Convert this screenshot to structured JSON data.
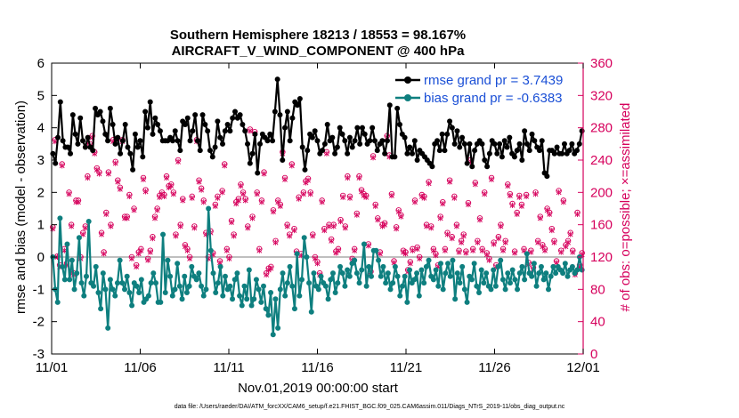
{
  "chart_data": {
    "type": "line",
    "title": "Southern Hemisphere 18213 / 18553 = 98.167%",
    "subtitle": "AIRCRAFT_V_WIND_COMPONENT @ 400 hPa",
    "xlabel": "Nov.01,2019 00:00:00 start",
    "ylabel": "rmse and bias (model - observation)",
    "ylabel_right": "# of obs: o=possible; ×=assimilated",
    "footer": "data file: /Users/raeder/DAI/ATM_forcXX/CAM6_setup/f.e21.FHIST_BGC.f09_025.CAM6assim.011/Diags_NTrS_2019-11/obs_diag_output.nc",
    "xlim": [
      0,
      30
    ],
    "ylim": [
      -3,
      6
    ],
    "ylim_right": [
      0,
      360
    ],
    "x_tick_labels": [
      "11/01",
      "11/06",
      "11/11",
      "11/16",
      "11/21",
      "11/26",
      "12/01"
    ],
    "x_tick_values": [
      0,
      5,
      10,
      15,
      20,
      25,
      30
    ],
    "y_tick_labels": [
      "-3",
      "-2",
      "-1",
      "0",
      "1",
      "2",
      "3",
      "4",
      "5",
      "6"
    ],
    "y_tick_values": [
      -3,
      -2,
      -1,
      0,
      1,
      2,
      3,
      4,
      5,
      6
    ],
    "y_right_tick_labels": [
      "0",
      "40",
      "80",
      "120",
      "160",
      "200",
      "240",
      "280",
      "320",
      "360"
    ],
    "y_right_tick_values": [
      0,
      40,
      80,
      120,
      160,
      200,
      240,
      280,
      320,
      360
    ],
    "zero_line": 0,
    "colors": {
      "rmse": "#000000",
      "bias": "#0e7f7f",
      "obs": "#d6005c",
      "legend_text": "#1a4fd6",
      "zero_line": "#bfbfbf"
    },
    "series": [
      {
        "name": "rmse grand pr = 3.7439",
        "axis": "left",
        "values": [
          3.2,
          2.9,
          3.7,
          4.8,
          3.6,
          3.4,
          3.4,
          3.2,
          4.4,
          3.8,
          3.5,
          4.3,
          3.6,
          3.4,
          3.7,
          3.4,
          3.3,
          4.6,
          4.4,
          4.5,
          4.2,
          3.8,
          3.6,
          4.6,
          4.1,
          3.5,
          3.7,
          3.2,
          3.6,
          4.1,
          3.4,
          3.2,
          2.7,
          3.8,
          3.4,
          3.6,
          3.1,
          4.5,
          4.0,
          4.8,
          3.8,
          4.3,
          4.1,
          3.9,
          3.6,
          3.6,
          3.6,
          3.7,
          3.6,
          3.9,
          3.6,
          3.3,
          4.2,
          4.1,
          4.3,
          3.6,
          3.9,
          4.4,
          3.6,
          3.3,
          4.4,
          4.1,
          3.9,
          3.3,
          3.1,
          3.4,
          4.2,
          3.7,
          3.5,
          3.9,
          4.1,
          3.9,
          4.3,
          4.5,
          4.3,
          4.4,
          4.1,
          3.9,
          3.5,
          2.9,
          3.2,
          3.8,
          2.6,
          3.5,
          3.8,
          3.7,
          3.6,
          3.8,
          3.6,
          4.5,
          5.5,
          4.4,
          3.0,
          4.0,
          4.5,
          3.6,
          4.3,
          4.8,
          4.7,
          4.9,
          3.4,
          2.7,
          3.3,
          3.8,
          3.7,
          3.9,
          3.6,
          3.2,
          3.3,
          3.5,
          4.1,
          3.6,
          3.7,
          3.2,
          3.4,
          4.0,
          3.8,
          3.6,
          3.2,
          3.7,
          3.4,
          3.6,
          4.0,
          3.5,
          4.0,
          3.8,
          3.5,
          3.6,
          4.0,
          3.6,
          3.3,
          3.5,
          3.6,
          3.2,
          3.6,
          4.7,
          3.1,
          3.1,
          4.6,
          4.1,
          3.8,
          3.7,
          3.2,
          3.4,
          3.2,
          3.6,
          3.0,
          3.3,
          3.2,
          3.1,
          3.0,
          2.9,
          2.8,
          3.5,
          3.6,
          3.3,
          3.8,
          3.3,
          3.8,
          4.2,
          4.0,
          3.5,
          3.9,
          3.4,
          3.7,
          3.5,
          2.9,
          3.5,
          2.8,
          3.3,
          3.5,
          3.6,
          3.5,
          3.0,
          2.8,
          3.2,
          3.6,
          3.5,
          3.2,
          3.5,
          3.1,
          3.6,
          3.4,
          3.7,
          3.2,
          3.1,
          3.3,
          3.5,
          3.0,
          3.9,
          3.5,
          3.3,
          3.8,
          3.6,
          3.4,
          3.3,
          3.6,
          2.6,
          2.5,
          3.3,
          3.3,
          3.2,
          3.4,
          3.2,
          3.2,
          3.5,
          3.2,
          3.3,
          3.5,
          3.2,
          3.3,
          3.5,
          3.9
        ],
        "values_note": "sampled 6-hourly, approximate"
      },
      {
        "name": "bias grand pr = -0.6383",
        "axis": "left",
        "values": [
          0.0,
          -1.0,
          -1.4,
          1.2,
          -0.3,
          -0.7,
          0.4,
          -0.7,
          -0.1,
          -1.0,
          -0.5,
          0.6,
          -0.8,
          -1.2,
          -0.6,
          1.1,
          -0.8,
          -0.9,
          -0.3,
          -1.1,
          -1.6,
          -0.5,
          -1.0,
          -2.2,
          -0.7,
          -1.0,
          -1.2,
          -0.8,
          -0.1,
          -0.8,
          -1.0,
          -0.6,
          -1.1,
          -1.5,
          -0.8,
          -0.9,
          -1.1,
          -0.7,
          -1.4,
          -1.3,
          -1.2,
          -0.8,
          -0.5,
          -0.8,
          -1.4,
          -1.4,
          0.7,
          -1.1,
          -0.1,
          -0.6,
          -1.2,
          -1.0,
          -0.2,
          -0.9,
          -1.3,
          -0.6,
          -1.1,
          -0.9,
          -0.3,
          -0.6,
          -0.7,
          -0.5,
          -0.9,
          -1.2,
          -1.0,
          1.5,
          0.2,
          -0.5,
          -1.1,
          -0.8,
          -0.3,
          -1.2,
          -0.6,
          -1.0,
          -0.9,
          -1.3,
          -0.7,
          -0.5,
          -1.2,
          -1.5,
          -0.9,
          -1.3,
          -0.4,
          -1.5,
          -1.3,
          -0.7,
          -1.0,
          -1.4,
          -0.9,
          -1.6,
          -1.8,
          -1.1,
          -2.4,
          -1.3,
          -2.2,
          -1.0,
          -0.5,
          -1.2,
          -0.8,
          -0.3,
          -0.9,
          -1.6,
          0.1,
          -1.2,
          -0.7,
          0.6,
          0.0,
          -0.8,
          -1.7,
          -0.5,
          -0.9,
          -1.0,
          -0.6,
          -0.8,
          -0.9,
          -1.3,
          -0.7,
          -0.5,
          -1.1,
          -0.8,
          -0.3,
          -0.5,
          -0.9,
          -0.4,
          -0.6,
          -0.2,
          -0.1,
          -0.5,
          -0.8,
          -0.4,
          0.4,
          -0.9,
          -0.3,
          -0.6,
          0.2,
          0.2,
          -0.1,
          -0.6,
          -0.3,
          -0.8,
          -0.5,
          -1.0,
          -0.8,
          -0.3,
          -0.6,
          -1.2,
          -0.9,
          -0.6,
          -1.4,
          -0.4,
          -0.8,
          -0.7,
          -0.5,
          -1.2,
          -0.4,
          -0.8,
          -0.3,
          -0.1,
          -0.6,
          -0.7,
          -0.4,
          -0.9,
          -0.2,
          -1.0,
          -0.5,
          -0.2,
          -0.6,
          -0.1,
          -1.3,
          -0.5,
          -0.8,
          -0.3,
          -1.0,
          -1.4,
          -0.6,
          -0.7,
          -0.2,
          -0.9,
          -1.1,
          -0.4,
          -0.8,
          -0.5,
          -0.9,
          -1.0,
          -0.4,
          -0.9,
          -0.3,
          -0.1,
          -0.7,
          -1.0,
          -0.5,
          -0.8,
          -0.4,
          -0.7,
          -1.0,
          -0.5,
          -0.3,
          -0.7,
          0.1,
          -0.5,
          -0.6,
          -0.2,
          -0.9,
          -0.5,
          -0.3,
          -0.7,
          -0.5,
          -1.0,
          -0.6,
          -0.3,
          -0.5,
          -0.3,
          -0.4,
          -0.5,
          -0.2,
          -0.6,
          -0.4,
          -0.3,
          -0.5,
          -0.4,
          0.0,
          -0.4
        ],
        "values_note": "sampled 6-hourly, approximate"
      },
      {
        "name": "obs possible",
        "axis": "right",
        "marker": "o",
        "values": [
          157,
          265,
          121,
          110,
          235,
          130,
          112,
          200,
          160,
          100,
          190,
          190,
          120,
          150,
          158,
          220,
          260,
          270,
          250,
          230,
          225,
          150,
          126,
          175,
          225,
          160,
          265,
          238,
          215,
          206,
          265,
          170,
          170,
          197,
          120,
          180,
          110,
          126,
          130,
          218,
          203,
          118,
          128,
          145,
          170,
          180,
          196,
          200,
          197,
          220,
          208,
          210,
          200,
          148,
          240,
          160,
          192,
          135,
          130,
          120,
          195,
          158,
          265,
          215,
          205,
          190,
          150,
          120,
          152,
          125,
          185,
          195,
          115,
          202,
          235,
          130,
          120,
          165,
          148,
          188,
          192,
          210,
          200,
          192,
          158,
          278,
          170,
          275,
          200,
          130,
          190,
          225,
          100,
          106,
          108,
          178,
          140,
          190,
          185,
          250,
          218,
          160,
          148,
          235,
          155,
          127,
          194,
          124,
          200,
          214,
          217,
          200,
          148,
          120,
          114,
          100,
          190,
          155,
          250,
          160,
          142,
          160,
          127,
          130,
          166,
          196,
          158,
          220,
          195,
          118,
          130,
          174,
          220,
          203,
          198,
          196,
          136,
          102,
          245,
          185,
          168,
          126,
          160,
          162,
          270,
          246,
          198,
          115,
          157,
          178,
          172,
          128,
          126,
          104,
          114,
          130,
          190,
          132,
          120,
          197,
          195,
          160,
          213,
          158,
          130,
          124,
          110,
          170,
          188,
          130,
          150,
          215,
          145,
          195,
          160,
          128,
          140,
          148,
          127,
          187,
          240,
          130,
          212,
          140,
          168,
          130,
          200,
          125,
          118,
          218,
          138,
          110,
          145,
          160,
          130,
          140,
          210,
          198,
          186,
          127,
          175,
          196,
          185,
          130,
          197,
          113,
          128,
          107,
          200,
          140,
          170,
          135,
          130,
          180,
          175,
          155,
          140,
          115,
          202,
          128,
          190,
          135,
          140,
          150,
          128,
          100,
          175,
          110,
          125
        ],
        "values_note": "approximate scatter"
      },
      {
        "name": "obs assimilated",
        "axis": "right",
        "marker": "x",
        "values": [
          155,
          263,
          120,
          108,
          233,
          128,
          110,
          198,
          158,
          98,
          188,
          188,
          118,
          148,
          156,
          218,
          258,
          268,
          248,
          228,
          223,
          148,
          124,
          173,
          223,
          158,
          263,
          236,
          213,
          204,
          263,
          168,
          168,
          195,
          118,
          178,
          108,
          124,
          128,
          216,
          201,
          116,
          126,
          143,
          168,
          178,
          194,
          198,
          195,
          218,
          206,
          208,
          198,
          146,
          238,
          158,
          190,
          133,
          128,
          118,
          193,
          156,
          263,
          213,
          203,
          188,
          148,
          118,
          150,
          123,
          183,
          193,
          113,
          200,
          233,
          128,
          118,
          163,
          146,
          186,
          190,
          208,
          198,
          190,
          156,
          276,
          168,
          273,
          198,
          128,
          188,
          223,
          98,
          104,
          106,
          176,
          138,
          188,
          183,
          248,
          216,
          158,
          146,
          233,
          153,
          125,
          192,
          122,
          198,
          212,
          215,
          198,
          146,
          118,
          112,
          98,
          188,
          153,
          248,
          158,
          140,
          158,
          125,
          128,
          164,
          194,
          156,
          218,
          193,
          116,
          128,
          172,
          218,
          201,
          196,
          194,
          134,
          100,
          243,
          183,
          166,
          124,
          158,
          160,
          268,
          244,
          196,
          113,
          155,
          176,
          170,
          126,
          124,
          102,
          112,
          128,
          188,
          130,
          118,
          195,
          193,
          158,
          211,
          156,
          128,
          122,
          108,
          168,
          186,
          128,
          148,
          213,
          143,
          193,
          158,
          126,
          138,
          146,
          125,
          185,
          238,
          128,
          210,
          138,
          166,
          128,
          198,
          123,
          116,
          216,
          136,
          108,
          143,
          158,
          128,
          138,
          208,
          196,
          184,
          125,
          173,
          194,
          183,
          128,
          195,
          111,
          126,
          105,
          198,
          138,
          168,
          133,
          128,
          178,
          173,
          153,
          138,
          113,
          200,
          126,
          188,
          133,
          138,
          148,
          126,
          98,
          173,
          108,
          123
        ],
        "values_note": "approximate scatter"
      }
    ]
  }
}
